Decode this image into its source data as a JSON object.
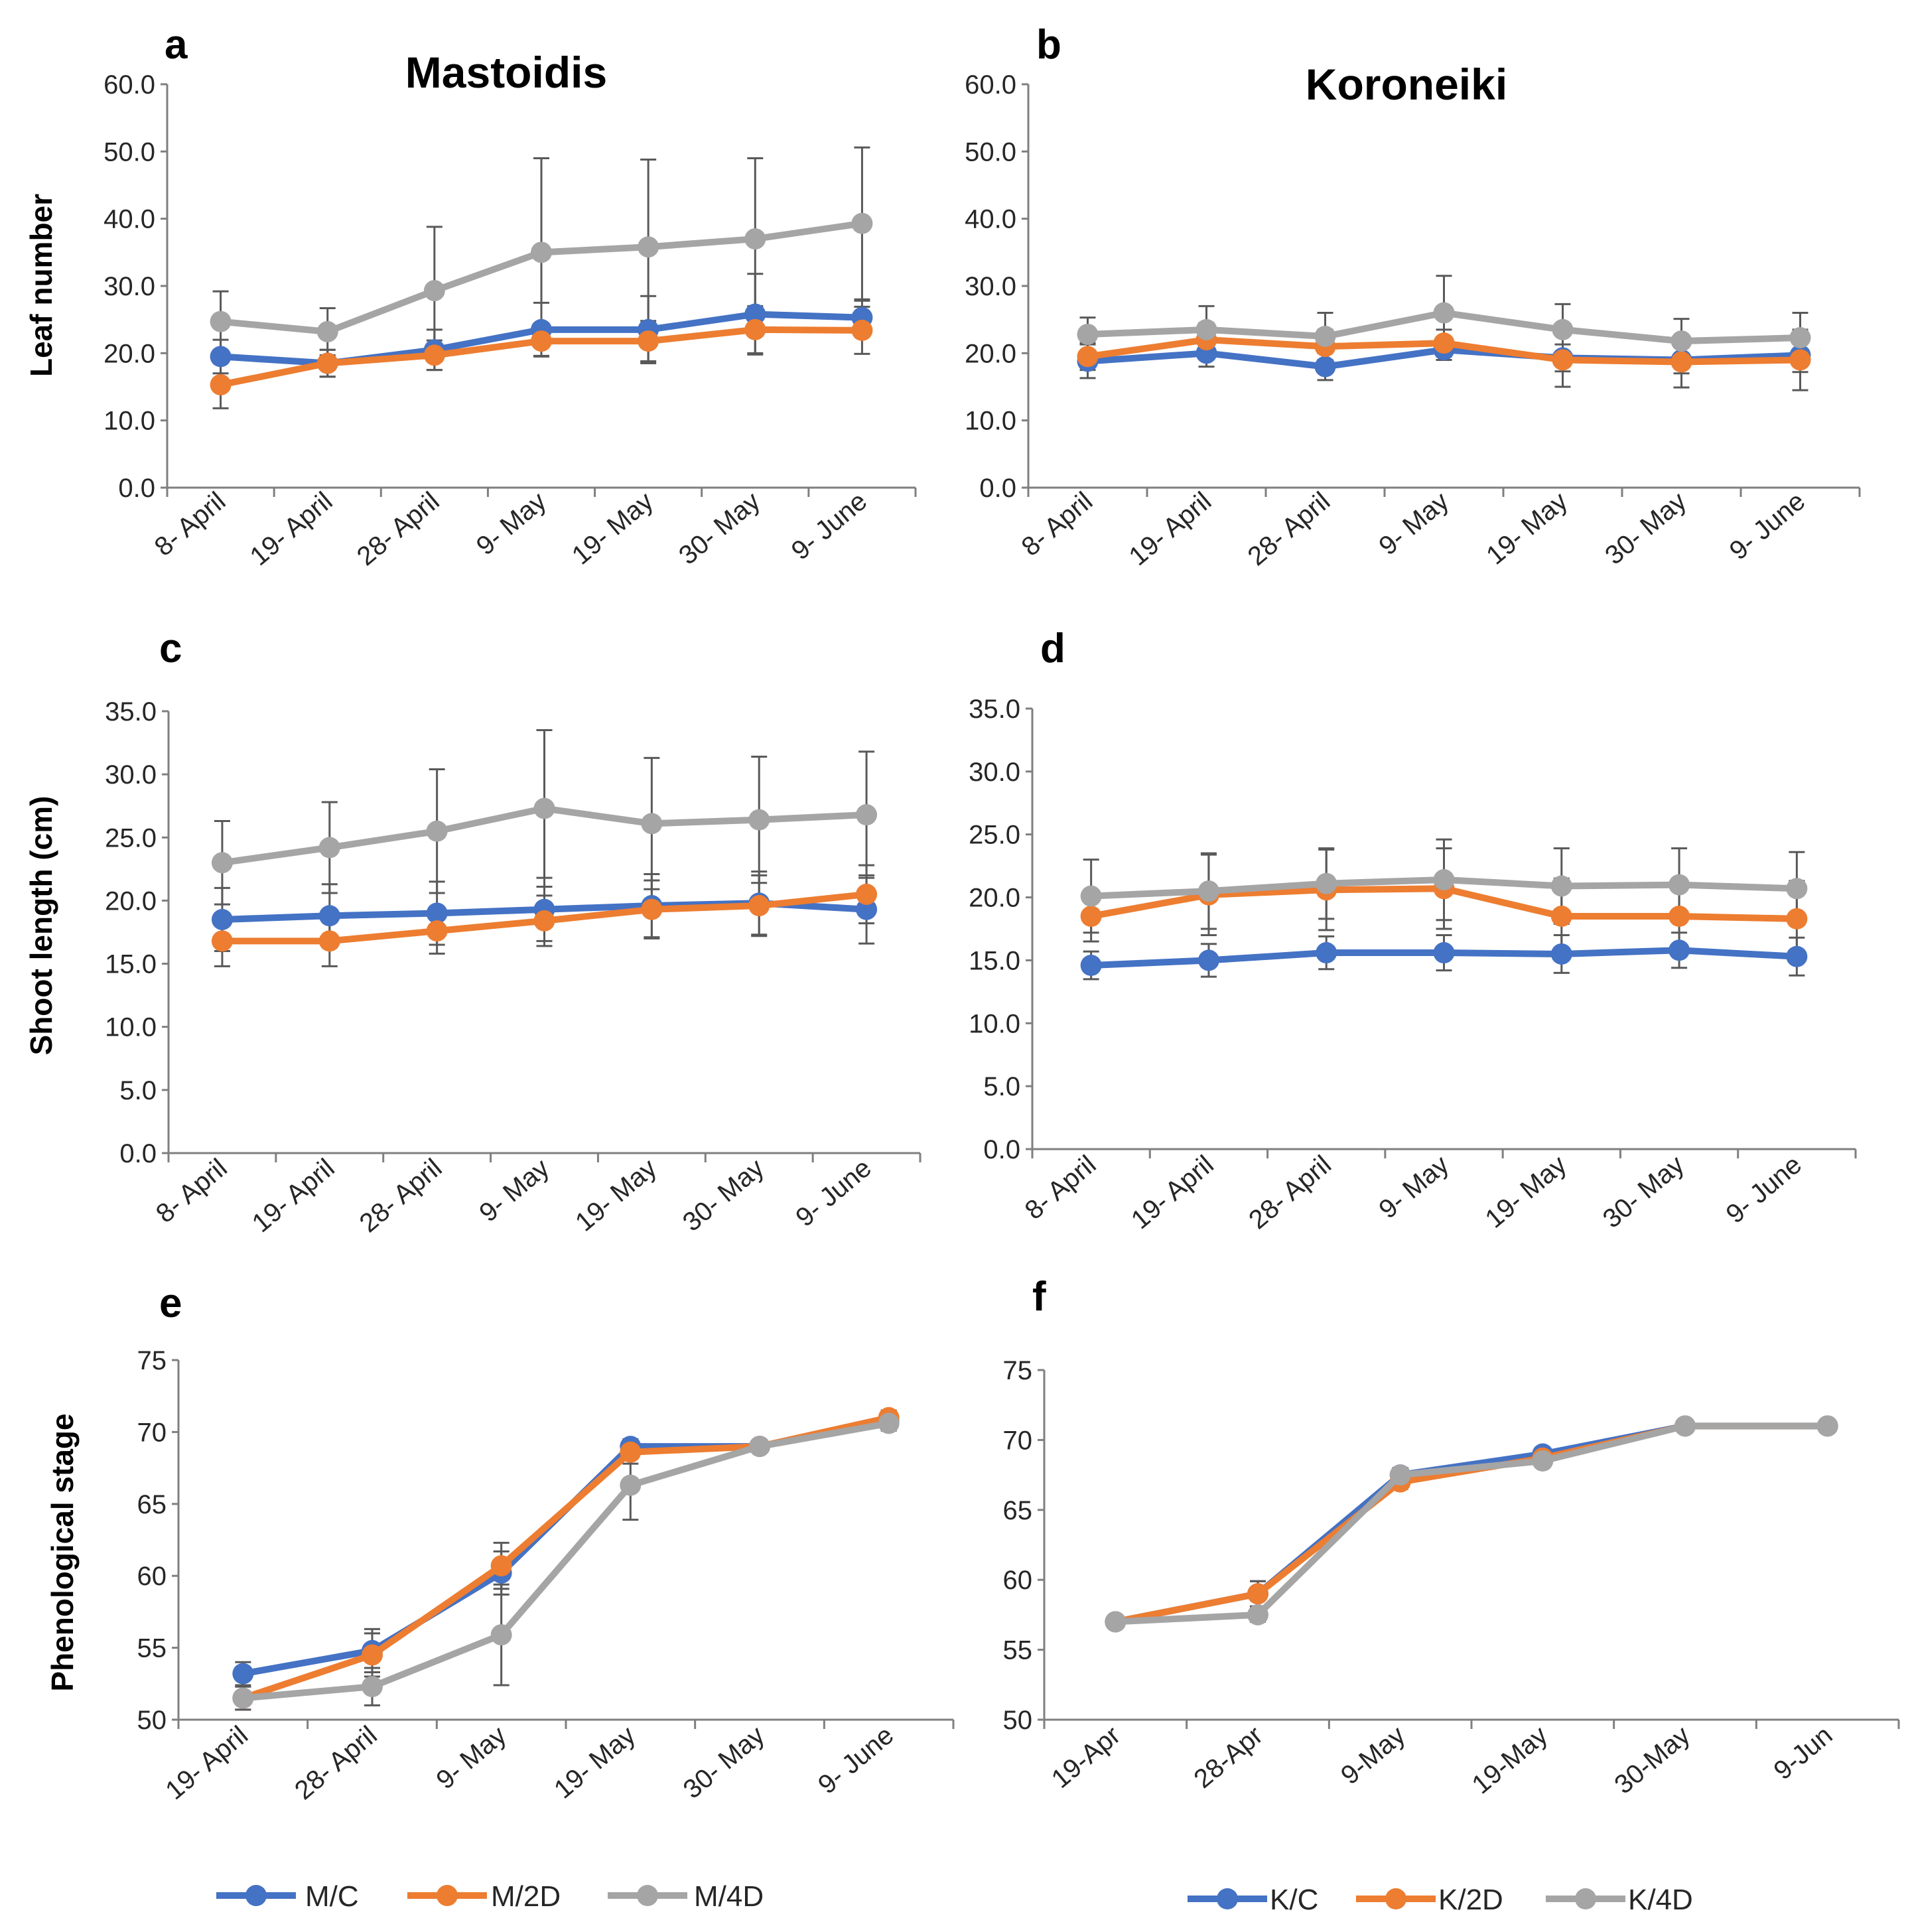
{
  "colors": {
    "control": "#4472C4",
    "two_day": "#ED7D31",
    "four_day": "#A5A5A5",
    "axis": "#7f7f7f",
    "error_bar": "#595959",
    "text": "#262626"
  },
  "legend_left": {
    "items": [
      {
        "label": "M/C",
        "color_key": "control"
      },
      {
        "label": "M/2D",
        "color_key": "two_day"
      },
      {
        "label": "M/4D",
        "color_key": "four_day"
      }
    ]
  },
  "legend_right": {
    "items": [
      {
        "label": "K/C",
        "color_key": "control"
      },
      {
        "label": "K/2D",
        "color_key": "two_day"
      },
      {
        "label": "K/4D",
        "color_key": "four_day"
      }
    ]
  },
  "chart_data": [
    {
      "id": "a",
      "panel_letter": "a",
      "type": "line",
      "title": "Mastoidis",
      "ylabel": "Leaf number",
      "ylim": [
        0,
        60
      ],
      "ytick_step": 10,
      "ytick_decimals": 1,
      "grid": false,
      "categories": [
        "8- April",
        "19- April",
        "28- April",
        "9- May",
        "19- May",
        "30- May",
        "9- June"
      ],
      "series": [
        {
          "name": "M/C",
          "color_key": "control",
          "values": [
            19.5,
            18.5,
            20.5,
            23.5,
            23.5,
            25.8,
            25.3
          ],
          "errors": [
            2.5,
            2.0,
            3.0,
            4.0,
            5.0,
            6.0,
            2.5
          ]
        },
        {
          "name": "M/2D",
          "color_key": "two_day",
          "values": [
            15.3,
            18.5,
            19.7,
            21.8,
            21.8,
            23.5,
            23.4
          ],
          "errors": [
            3.5,
            2.0,
            2.2,
            2.2,
            3.0,
            3.5,
            3.5
          ]
        },
        {
          "name": "M/4D",
          "color_key": "four_day",
          "values": [
            24.7,
            23.2,
            29.3,
            35.0,
            35.8,
            37.0,
            39.3
          ],
          "errors": [
            4.5,
            3.5,
            9.5,
            14.0,
            13.0,
            12.0,
            11.3
          ]
        }
      ]
    },
    {
      "id": "b",
      "panel_letter": "b",
      "type": "line",
      "title": "Koroneiki",
      "ylabel": "",
      "ylim": [
        0,
        60
      ],
      "ytick_step": 10,
      "ytick_decimals": 1,
      "grid": false,
      "categories": [
        "8- April",
        "19- April",
        "28- April",
        "9- May",
        "19- May",
        "30- May",
        "9- June"
      ],
      "series": [
        {
          "name": "K/C",
          "color_key": "control",
          "values": [
            18.8,
            20.0,
            18.0,
            20.5,
            19.3,
            19.0,
            19.7
          ],
          "errors": [
            2.5,
            2.0,
            2.0,
            1.5,
            2.0,
            2.0,
            2.5
          ]
        },
        {
          "name": "K/2D",
          "color_key": "two_day",
          "values": [
            19.5,
            22.0,
            21.0,
            21.5,
            19.0,
            18.7,
            19.0
          ],
          "errors": [
            2.0,
            2.5,
            2.5,
            2.0,
            4.0,
            3.8,
            4.5
          ]
        },
        {
          "name": "K/4D",
          "color_key": "four_day",
          "values": [
            22.8,
            23.5,
            22.5,
            26.0,
            23.5,
            21.8,
            22.3
          ],
          "errors": [
            2.5,
            3.5,
            3.5,
            5.5,
            3.8,
            3.3,
            3.7
          ]
        }
      ]
    },
    {
      "id": "c",
      "panel_letter": "c",
      "type": "line",
      "title": "",
      "ylabel": "Shoot length (cm)",
      "ylim": [
        0,
        35
      ],
      "ytick_step": 5,
      "ytick_decimals": 1,
      "grid": false,
      "categories": [
        "8- April",
        "19- April",
        "28- April",
        "9- May",
        "19- May",
        "30- May",
        "9- June"
      ],
      "series": [
        {
          "name": "M/C",
          "color_key": "control",
          "values": [
            18.5,
            18.8,
            19.0,
            19.3,
            19.6,
            19.8,
            19.3
          ],
          "errors": [
            2.5,
            2.5,
            2.5,
            2.5,
            2.5,
            2.5,
            2.7
          ]
        },
        {
          "name": "M/2D",
          "color_key": "two_day",
          "values": [
            16.8,
            16.8,
            17.6,
            18.4,
            19.3,
            19.6,
            20.5
          ],
          "errors": [
            2.0,
            2.0,
            1.8,
            2.0,
            2.3,
            2.4,
            2.3
          ]
        },
        {
          "name": "M/4D",
          "color_key": "four_day",
          "values": [
            23.0,
            24.2,
            25.5,
            27.3,
            26.1,
            26.4,
            26.8
          ],
          "errors": [
            3.3,
            3.6,
            4.9,
            6.2,
            5.2,
            5.0,
            5.0
          ]
        }
      ]
    },
    {
      "id": "d",
      "panel_letter": "d",
      "type": "line",
      "title": "",
      "ylabel": "",
      "ylim": [
        0,
        35
      ],
      "ytick_step": 5,
      "ytick_decimals": 1,
      "grid": false,
      "categories": [
        "8- April",
        "19- April",
        "28- April",
        "9- May",
        "19- May",
        "30- May",
        "9- June"
      ],
      "series": [
        {
          "name": "K/C",
          "color_key": "control",
          "values": [
            14.6,
            15.0,
            15.6,
            15.6,
            15.5,
            15.8,
            15.3
          ],
          "errors": [
            1.1,
            1.3,
            1.3,
            1.4,
            1.5,
            1.4,
            1.5
          ]
        },
        {
          "name": "K/2D",
          "color_key": "two_day",
          "values": [
            18.5,
            20.2,
            20.6,
            20.7,
            18.5,
            18.5,
            18.3
          ],
          "errors": [
            2.0,
            3.2,
            3.2,
            3.2,
            3.0,
            3.0,
            3.0
          ]
        },
        {
          "name": "K/4D",
          "color_key": "four_day",
          "values": [
            20.1,
            20.5,
            21.1,
            21.4,
            20.9,
            21.0,
            20.7
          ],
          "errors": [
            2.9,
            3.0,
            2.8,
            3.2,
            3.0,
            2.9,
            2.9
          ]
        }
      ]
    },
    {
      "id": "e",
      "panel_letter": "e",
      "type": "line",
      "title": "",
      "ylabel": "Phenological stage",
      "ylim": [
        50,
        75
      ],
      "ytick_step": 5,
      "ytick_decimals": 0,
      "grid": false,
      "categories": [
        "19- April",
        "28- April",
        "9- May",
        "19- May",
        "30- May",
        "9- June"
      ],
      "series": [
        {
          "name": "M/C",
          "color_key": "control",
          "values": [
            53.2,
            54.8,
            60.2,
            69.0,
            69.0,
            70.8
          ],
          "errors": [
            0.8,
            1.5,
            1.5,
            0.5,
            0.4,
            0.5
          ]
        },
        {
          "name": "M/2D",
          "color_key": "two_day",
          "values": [
            51.5,
            54.5,
            60.7,
            68.6,
            69.0,
            71.0
          ],
          "errors": [
            0.8,
            1.5,
            1.6,
            0.8,
            0.4,
            0.5
          ]
        },
        {
          "name": "M/4D",
          "color_key": "four_day",
          "values": [
            51.5,
            52.3,
            55.9,
            66.3,
            69.0,
            70.6
          ],
          "errors": [
            0.8,
            1.3,
            3.5,
            2.4,
            0.4,
            0.5
          ]
        }
      ]
    },
    {
      "id": "f",
      "panel_letter": "f",
      "type": "line",
      "title": "",
      "ylabel": "",
      "ylim": [
        50,
        75
      ],
      "ytick_step": 5,
      "ytick_decimals": 0,
      "grid": false,
      "categories": [
        "19-Apr",
        "28-Apr",
        "9-May",
        "19-May",
        "30-May",
        "9-Jun"
      ],
      "series": [
        {
          "name": "K/C",
          "color_key": "control",
          "values": [
            57.0,
            59.0,
            67.5,
            69.0,
            71.0,
            71.0
          ],
          "errors": [
            0.3,
            0.9,
            0.5,
            0.4,
            0.2,
            0.2
          ]
        },
        {
          "name": "K/2D",
          "color_key": "two_day",
          "values": [
            57.0,
            59.0,
            67.0,
            68.7,
            71.0,
            71.0
          ],
          "errors": [
            0.3,
            0.9,
            0.5,
            0.4,
            0.2,
            0.2
          ]
        },
        {
          "name": "K/4D",
          "color_key": "four_day",
          "values": [
            57.0,
            57.5,
            67.5,
            68.5,
            71.0,
            71.0
          ],
          "errors": [
            0.3,
            0.5,
            0.5,
            0.4,
            0.2,
            0.2
          ]
        }
      ]
    }
  ]
}
